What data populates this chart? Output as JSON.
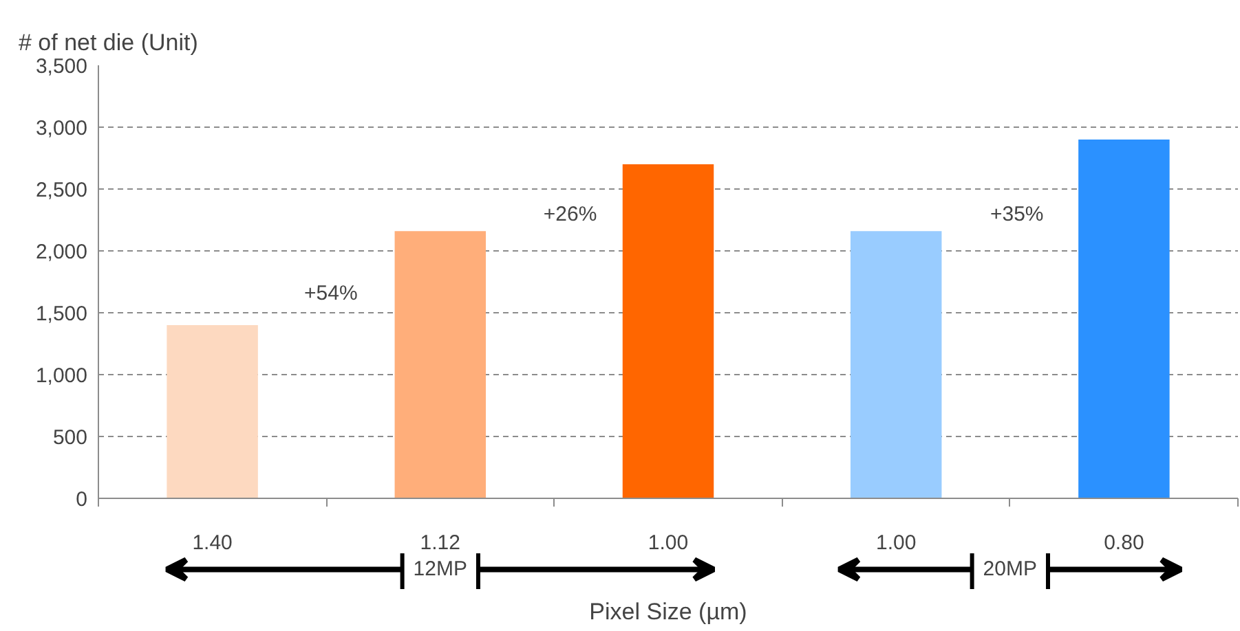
{
  "chart_data": {
    "type": "bar",
    "ylabel": "# of net die (Unit)",
    "xlabel": "Pixel Size (µm)",
    "categories": [
      "1.40",
      "1.12",
      "1.00",
      "1.00",
      "0.80"
    ],
    "values": [
      1400,
      2160,
      2700,
      2160,
      2900
    ],
    "colors": [
      "#fdd9c0",
      "#ffae7a",
      "#ff6600",
      "#99ccff",
      "#2b91ff"
    ],
    "ylim": [
      0,
      3500
    ],
    "yticks": [
      0,
      500,
      {
        "value": 1000,
        "label": "1,000"
      },
      {
        "value": 1500,
        "label": "1,500"
      },
      {
        "value": 2000,
        "label": "2,000"
      },
      {
        "value": 2500,
        "label": "2,500"
      },
      {
        "value": 3000,
        "label": "3,000"
      },
      {
        "value": 3500,
        "label": "3,500"
      }
    ],
    "grid": "y",
    "annotations": [
      "+54%",
      "+26%",
      "+35%",
      "12MP",
      "20MP"
    ]
  }
}
